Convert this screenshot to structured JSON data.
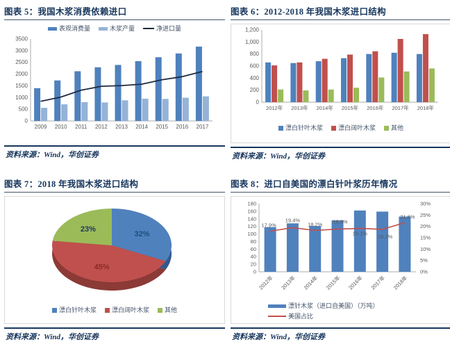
{
  "source_text": "资料来源：Wind，华创证券",
  "colors": {
    "title_navy": "#17365D",
    "rule_navy": "#17365D",
    "axis_text": "#595959",
    "axis_line": "#ABABAB",
    "blue": "#4F81BD",
    "light_blue": "#95B3D7",
    "red": "#C0504D",
    "green": "#9BBB59",
    "dark_line": "#1F2B40"
  },
  "panels": [
    {
      "title": "图表 5：我国木浆消费依赖进口",
      "source": "资料来源：Wind，华创证券"
    },
    {
      "title": "图表 6：2012-2018 年我国木浆进口结构",
      "source": "资料来源：Wind，华创证券"
    },
    {
      "title": "图表 7：2018 年我国木浆进口结构",
      "source": "资料来源：Wind，华创证券"
    },
    {
      "title": "图表 8：进口自美国的漂白针叶浆历年情况",
      "source": "资料来源：Wind，华创证券"
    }
  ],
  "chart_data": [
    {
      "type": "bar",
      "title": "我国木浆消费依赖进口",
      "categories": [
        "2009",
        "2010",
        "2011",
        "2012",
        "2013",
        "2014",
        "2015",
        "2016",
        "2017"
      ],
      "series": [
        {
          "name": "表观消费量",
          "color": "#4F81BD",
          "values": [
            1400,
            1730,
            2120,
            2290,
            2390,
            2550,
            2720,
            2880,
            3170
          ]
        },
        {
          "name": "木浆产量",
          "color": "#95B3D7",
          "values": [
            560,
            710,
            800,
            790,
            880,
            950,
            940,
            990,
            1050
          ]
        }
      ],
      "line": {
        "name": "净进口量",
        "color": "#1F2B40",
        "values": [
          840,
          1020,
          1310,
          1480,
          1510,
          1570,
          1760,
          1890,
          2110
        ]
      },
      "ylim": [
        0,
        3500
      ],
      "ytick_values": [
        0,
        500,
        1000,
        1500,
        2000,
        2500,
        3000,
        3500
      ],
      "ytick_labels": [
        "0",
        "500",
        "1000",
        "1500",
        "2000",
        "2500",
        "3000",
        "3500"
      ],
      "grid": false,
      "legend_position": "top"
    },
    {
      "type": "bar",
      "title": "2012-2018 年我国木浆进口结构",
      "categories": [
        "2012年",
        "2013年",
        "2014年",
        "2015年",
        "2016年",
        "2017年",
        "2018年"
      ],
      "series": [
        {
          "name": "漂白针叶木浆",
          "color": "#4F81BD",
          "values": [
            660,
            650,
            680,
            730,
            800,
            820,
            800
          ]
        },
        {
          "name": "漂白阔叶木浆",
          "color": "#C0504D",
          "values": [
            610,
            660,
            720,
            790,
            845,
            1050,
            1130
          ]
        },
        {
          "name": "其他",
          "color": "#9BBB59",
          "values": [
            210,
            195,
            210,
            240,
            410,
            510,
            560
          ]
        }
      ],
      "ylim": [
        0,
        1200
      ],
      "ytick_values": [
        0,
        200,
        400,
        600,
        800,
        1000,
        1200
      ],
      "ytick_labels": [
        "0",
        "200",
        "400",
        "600",
        "800",
        "1,000",
        "1,200"
      ],
      "grid": false,
      "legend_position": "bottom"
    },
    {
      "type": "pie",
      "title": "2018 年我国木浆进口结构",
      "slices": [
        {
          "label": "漂白针叶木浆",
          "value": 32,
          "pct_label": "32%",
          "color": "#4F81BD",
          "dark": "#33598C",
          "label_color": "#1F4E79"
        },
        {
          "label": "漂白阔叶木浆",
          "value": 45,
          "pct_label": "45%",
          "color": "#C0504D",
          "dark": "#8B3A36",
          "label_color": "#8C2B26"
        },
        {
          "label": "其他",
          "value": 23,
          "pct_label": "23%",
          "color": "#9BBB59",
          "dark": "#6E8A3B",
          "label_color": "#1F3864"
        }
      ],
      "legend_position": "bottom"
    },
    {
      "type": "bar",
      "title": "进口自美国的漂白针叶浆历年情况",
      "categories": [
        "2012年",
        "2013年",
        "2014年",
        "2015年",
        "2016年",
        "2017年",
        "2018年"
      ],
      "series": [
        {
          "name": "漂针木浆（进口自美国）（万吨）",
          "color": "#4F81BD",
          "values": [
            118,
            128,
            121,
            136,
            162,
            159,
            146
          ]
        }
      ],
      "line": {
        "name": "美国占比",
        "color": "#C0504D",
        "axis": "right",
        "values": [
          17.9,
          19.4,
          18.2,
          18.8,
          19.1,
          18.7,
          21.6
        ],
        "point_labels": [
          "17.9%",
          "19.4%",
          "18.2%",
          "18.8%",
          "19.1%",
          "18.7%",
          "21.6%"
        ]
      },
      "ylim": [
        0,
        180
      ],
      "ytick_values": [
        0,
        20,
        40,
        60,
        80,
        100,
        120,
        140,
        160,
        180
      ],
      "ytick_labels": [
        "0",
        "20",
        "40",
        "60",
        "80",
        "100",
        "120",
        "140",
        "160",
        "180"
      ],
      "right_axis": {
        "lim": [
          0,
          30
        ],
        "tick_values": [
          0,
          5,
          10,
          15,
          20,
          25,
          30
        ],
        "tick_labels": [
          "0%",
          "5%",
          "10%",
          "15%",
          "20%",
          "25%",
          "30%"
        ]
      },
      "grid": false,
      "x_label_rotation": -45,
      "legend_position": "bottom-left"
    }
  ]
}
